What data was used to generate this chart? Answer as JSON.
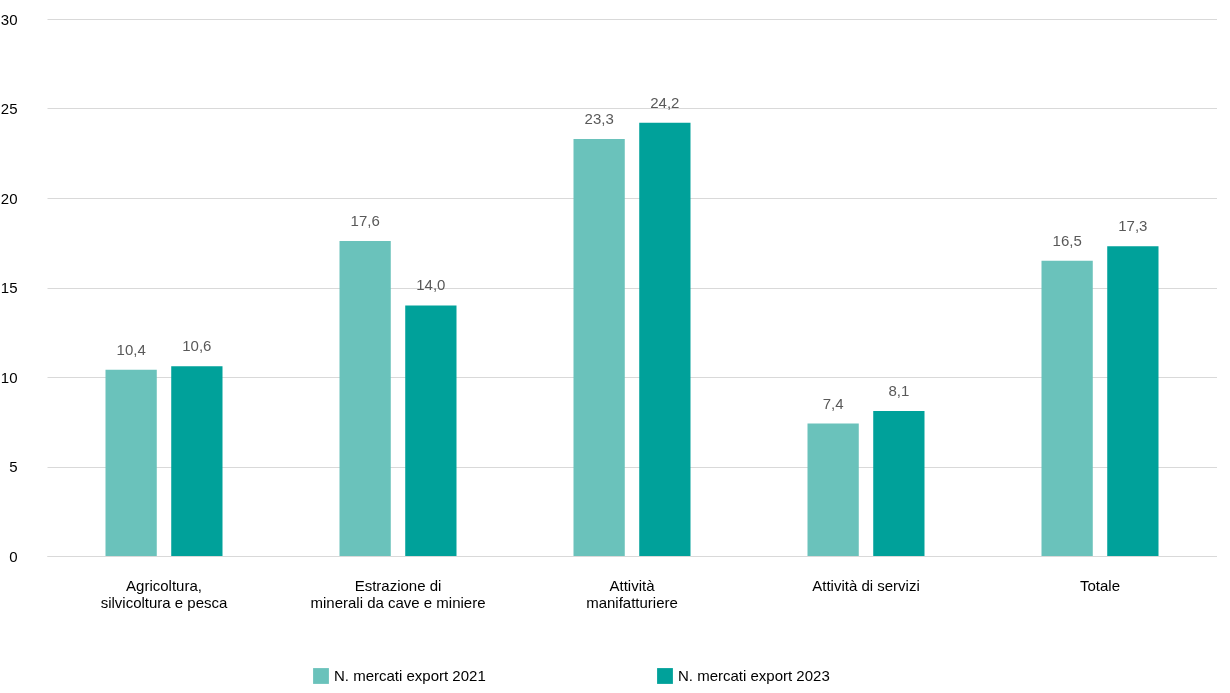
{
  "chart_data": {
    "type": "bar",
    "categories": [
      "Agricoltura,\nsilvicoltura e pesca",
      "Estrazione di\nminerali da cave e miniere",
      "Attività\nmanifatturiere",
      "Attività di servizi",
      "Totale"
    ],
    "series": [
      {
        "name": "N. mercati export 2021",
        "color": "#6ac2bb",
        "values": [
          10.4,
          17.6,
          23.3,
          7.4,
          16.5
        ],
        "value_labels": [
          "10,4",
          "17,6",
          "23,3",
          "7,4",
          "16,5"
        ]
      },
      {
        "name": "N. mercati export 2023",
        "color": "#00a19a",
        "values": [
          10.6,
          14.0,
          24.2,
          8.1,
          17.3
        ],
        "value_labels": [
          "10,6",
          "14,0",
          "24,2",
          "8,1",
          "17,3"
        ]
      }
    ],
    "ylim": [
      0,
      30
    ],
    "yticks": [
      0,
      5,
      10,
      15,
      20,
      25,
      30
    ],
    "grid": "y",
    "legend": "bottom"
  }
}
